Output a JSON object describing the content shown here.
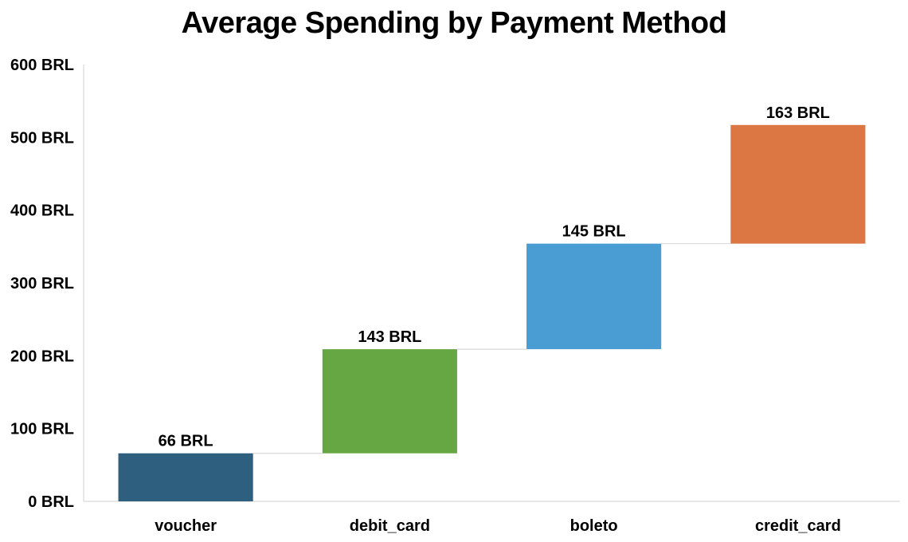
{
  "chart_data": {
    "type": "bar",
    "subtype": "waterfall",
    "title": "Average Spending by Payment Method",
    "xlabel": "",
    "ylabel": "",
    "categories": [
      "voucher",
      "debit_card",
      "boleto",
      "credit_card"
    ],
    "values": [
      66,
      143,
      145,
      163
    ],
    "data_labels": [
      "66 BRL",
      "143 BRL",
      "145 BRL",
      "163 BRL"
    ],
    "colors": [
      "#2e5f7f",
      "#66a744",
      "#4a9dd3",
      "#dc7743"
    ],
    "connector_color": "#d9d9d9",
    "axis_color": "#d9d9d9",
    "ylim": [
      0,
      600
    ],
    "yticks": [
      0,
      100,
      200,
      300,
      400,
      500,
      600
    ],
    "ytick_labels": [
      "0 BRL",
      "100 BRL",
      "200 BRL",
      "300 BRL",
      "400 BRL",
      "500 BRL",
      "600 BRL"
    ],
    "grid": false,
    "legend": "none"
  }
}
